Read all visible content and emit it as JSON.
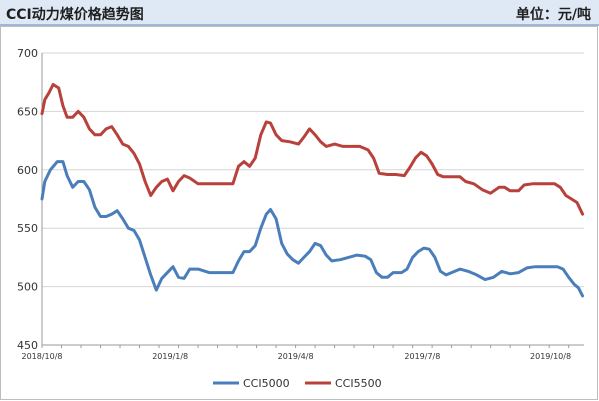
{
  "header": {
    "title": "CCI动力煤价格趋势图",
    "unit": "单位：元/吨"
  },
  "chart_data": {
    "type": "line",
    "title": "CCI动力煤价格趋势图",
    "unit": "单位：元/吨",
    "xlabel": "",
    "ylabel": "",
    "ylim": [
      450,
      700
    ],
    "yticks": [
      450,
      500,
      550,
      600,
      650,
      700
    ],
    "xlim": [
      "2018-10-08",
      "2019-11-01"
    ],
    "xticks": [
      "2018/10/8",
      "2019/1/8",
      "2019/4/8",
      "2019/7/8",
      "2019/10/8"
    ],
    "grid": "horizontal",
    "legend_position": "bottom",
    "series": [
      {
        "name": "CCI5000",
        "color": "#4a7ebb",
        "points": [
          [
            "2018-10-08",
            575
          ],
          [
            "2018-10-10",
            590
          ],
          [
            "2018-10-14",
            600
          ],
          [
            "2018-10-19",
            607
          ],
          [
            "2018-10-23",
            607
          ],
          [
            "2018-10-26",
            595
          ],
          [
            "2018-10-30",
            585
          ],
          [
            "2018-11-03",
            590
          ],
          [
            "2018-11-07",
            590
          ],
          [
            "2018-11-11",
            583
          ],
          [
            "2018-11-15",
            568
          ],
          [
            "2018-11-19",
            560
          ],
          [
            "2018-11-23",
            560
          ],
          [
            "2018-11-27",
            562
          ],
          [
            "2018-12-01",
            565
          ],
          [
            "2018-12-05",
            558
          ],
          [
            "2018-12-09",
            550
          ],
          [
            "2018-12-13",
            548
          ],
          [
            "2018-12-17",
            540
          ],
          [
            "2018-12-21",
            525
          ],
          [
            "2018-12-25",
            510
          ],
          [
            "2018-12-29",
            497
          ],
          [
            "2019-01-02",
            507
          ],
          [
            "2019-01-06",
            512
          ],
          [
            "2019-01-10",
            517
          ],
          [
            "2019-01-14",
            508
          ],
          [
            "2019-01-18",
            507
          ],
          [
            "2019-01-22",
            515
          ],
          [
            "2019-01-28",
            515
          ],
          [
            "2019-02-05",
            512
          ],
          [
            "2019-02-15",
            512
          ],
          [
            "2019-02-22",
            512
          ],
          [
            "2019-02-26",
            522
          ],
          [
            "2019-03-02",
            530
          ],
          [
            "2019-03-06",
            530
          ],
          [
            "2019-03-10",
            535
          ],
          [
            "2019-03-14",
            550
          ],
          [
            "2019-03-18",
            562
          ],
          [
            "2019-03-21",
            566
          ],
          [
            "2019-03-25",
            558
          ],
          [
            "2019-03-29",
            537
          ],
          [
            "2019-04-02",
            528
          ],
          [
            "2019-04-06",
            523
          ],
          [
            "2019-04-10",
            520
          ],
          [
            "2019-04-14",
            525
          ],
          [
            "2019-04-18",
            530
          ],
          [
            "2019-04-22",
            537
          ],
          [
            "2019-04-26",
            535
          ],
          [
            "2019-04-30",
            527
          ],
          [
            "2019-05-04",
            522
          ],
          [
            "2019-05-10",
            523
          ],
          [
            "2019-05-16",
            525
          ],
          [
            "2019-05-22",
            527
          ],
          [
            "2019-05-28",
            526
          ],
          [
            "2019-06-01",
            523
          ],
          [
            "2019-06-05",
            512
          ],
          [
            "2019-06-09",
            508
          ],
          [
            "2019-06-13",
            508
          ],
          [
            "2019-06-17",
            512
          ],
          [
            "2019-06-23",
            512
          ],
          [
            "2019-06-27",
            515
          ],
          [
            "2019-07-01",
            525
          ],
          [
            "2019-07-05",
            530
          ],
          [
            "2019-07-09",
            533
          ],
          [
            "2019-07-13",
            532
          ],
          [
            "2019-07-17",
            525
          ],
          [
            "2019-07-21",
            513
          ],
          [
            "2019-07-25",
            510
          ],
          [
            "2019-07-29",
            512
          ],
          [
            "2019-08-04",
            515
          ],
          [
            "2019-08-10",
            513
          ],
          [
            "2019-08-16",
            510
          ],
          [
            "2019-08-22",
            506
          ],
          [
            "2019-08-28",
            508
          ],
          [
            "2019-09-03",
            513
          ],
          [
            "2019-09-09",
            511
          ],
          [
            "2019-09-15",
            512
          ],
          [
            "2019-09-21",
            516
          ],
          [
            "2019-09-27",
            517
          ],
          [
            "2019-10-05",
            517
          ],
          [
            "2019-10-13",
            517
          ],
          [
            "2019-10-17",
            515
          ],
          [
            "2019-10-21",
            508
          ],
          [
            "2019-10-25",
            502
          ],
          [
            "2019-10-28",
            499
          ],
          [
            "2019-10-31",
            492
          ]
        ]
      },
      {
        "name": "CCI5500",
        "color": "#b8413c",
        "points": [
          [
            "2018-10-08",
            648
          ],
          [
            "2018-10-10",
            660
          ],
          [
            "2018-10-13",
            666
          ],
          [
            "2018-10-16",
            673
          ],
          [
            "2018-10-20",
            670
          ],
          [
            "2018-10-23",
            655
          ],
          [
            "2018-10-26",
            645
          ],
          [
            "2018-10-30",
            645
          ],
          [
            "2018-11-03",
            650
          ],
          [
            "2018-11-07",
            645
          ],
          [
            "2018-11-11",
            635
          ],
          [
            "2018-11-15",
            630
          ],
          [
            "2018-11-19",
            630
          ],
          [
            "2018-11-23",
            635
          ],
          [
            "2018-11-27",
            637
          ],
          [
            "2018-12-01",
            630
          ],
          [
            "2018-12-05",
            622
          ],
          [
            "2018-12-09",
            620
          ],
          [
            "2018-12-13",
            614
          ],
          [
            "2018-12-17",
            605
          ],
          [
            "2018-12-21",
            590
          ],
          [
            "2018-12-25",
            578
          ],
          [
            "2018-12-29",
            585
          ],
          [
            "2019-01-02",
            590
          ],
          [
            "2019-01-06",
            592
          ],
          [
            "2019-01-10",
            582
          ],
          [
            "2019-01-14",
            590
          ],
          [
            "2019-01-18",
            595
          ],
          [
            "2019-01-22",
            593
          ],
          [
            "2019-01-28",
            588
          ],
          [
            "2019-02-10",
            588
          ],
          [
            "2019-02-22",
            588
          ],
          [
            "2019-02-26",
            603
          ],
          [
            "2019-03-02",
            607
          ],
          [
            "2019-03-06",
            603
          ],
          [
            "2019-03-10",
            610
          ],
          [
            "2019-03-14",
            630
          ],
          [
            "2019-03-18",
            641
          ],
          [
            "2019-03-21",
            640
          ],
          [
            "2019-03-25",
            630
          ],
          [
            "2019-03-29",
            625
          ],
          [
            "2019-04-04",
            624
          ],
          [
            "2019-04-10",
            622
          ],
          [
            "2019-04-14",
            628
          ],
          [
            "2019-04-18",
            635
          ],
          [
            "2019-04-22",
            630
          ],
          [
            "2019-04-26",
            624
          ],
          [
            "2019-04-30",
            620
          ],
          [
            "2019-05-06",
            622
          ],
          [
            "2019-05-12",
            620
          ],
          [
            "2019-05-18",
            620
          ],
          [
            "2019-05-24",
            620
          ],
          [
            "2019-05-30",
            617
          ],
          [
            "2019-06-03",
            610
          ],
          [
            "2019-06-07",
            597
          ],
          [
            "2019-06-13",
            596
          ],
          [
            "2019-06-19",
            596
          ],
          [
            "2019-06-25",
            595
          ],
          [
            "2019-06-29",
            602
          ],
          [
            "2019-07-03",
            610
          ],
          [
            "2019-07-07",
            615
          ],
          [
            "2019-07-11",
            612
          ],
          [
            "2019-07-15",
            605
          ],
          [
            "2019-07-19",
            596
          ],
          [
            "2019-07-23",
            594
          ],
          [
            "2019-07-29",
            594
          ],
          [
            "2019-08-04",
            594
          ],
          [
            "2019-08-08",
            590
          ],
          [
            "2019-08-14",
            588
          ],
          [
            "2019-08-20",
            583
          ],
          [
            "2019-08-26",
            580
          ],
          [
            "2019-09-01",
            585
          ],
          [
            "2019-09-05",
            585
          ],
          [
            "2019-09-09",
            582
          ],
          [
            "2019-09-15",
            582
          ],
          [
            "2019-09-19",
            587
          ],
          [
            "2019-09-25",
            588
          ],
          [
            "2019-10-03",
            588
          ],
          [
            "2019-10-11",
            588
          ],
          [
            "2019-10-15",
            585
          ],
          [
            "2019-10-19",
            578
          ],
          [
            "2019-10-23",
            575
          ],
          [
            "2019-10-27",
            572
          ],
          [
            "2019-10-31",
            562
          ]
        ]
      }
    ]
  }
}
